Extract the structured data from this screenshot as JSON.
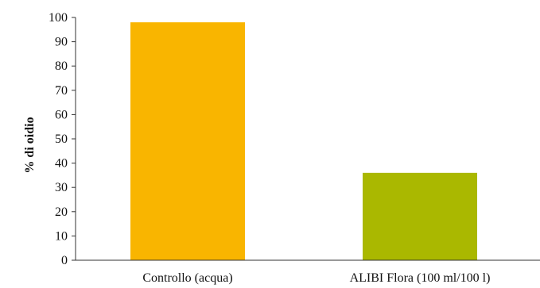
{
  "chart_data": {
    "type": "bar",
    "title": "",
    "xlabel": "",
    "ylabel": "% di oidio",
    "categories": [
      "Controllo (acqua)",
      "ALIBI Flora (100 ml/100 l)"
    ],
    "values": [
      98,
      36
    ],
    "colors": [
      "#F9B500",
      "#AAB800"
    ],
    "ylim": [
      0,
      100
    ],
    "yticks": [
      "0",
      "10",
      "20",
      "30",
      "40",
      "50",
      "60",
      "70",
      "80",
      "90",
      "100"
    ],
    "grid": false,
    "legend": "none"
  }
}
